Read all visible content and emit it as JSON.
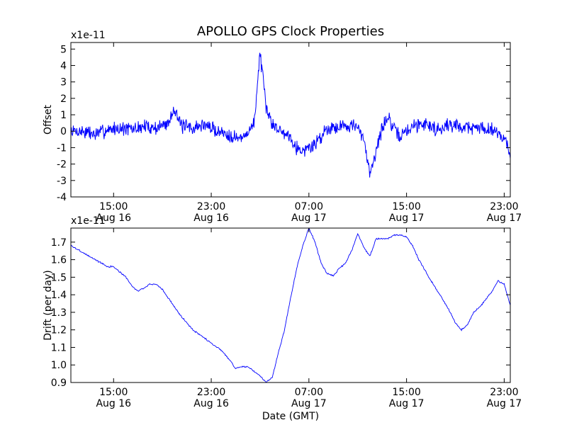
{
  "figure": {
    "title": "APOLLO GPS Clock Properties",
    "xlabel": "Date (GMT)"
  },
  "chart_data": [
    {
      "type": "line",
      "title": "APOLLO GPS Clock Properties",
      "ylabel": "Offset",
      "yscale_label": "x1e-11",
      "ylim": [
        -4,
        5.4
      ],
      "yticks": [
        -4,
        -3,
        -2,
        -1,
        0,
        1,
        2,
        3,
        4,
        5
      ],
      "x_range_hours": [
        11.5,
        47.5
      ],
      "xticks": [
        {
          "time": "15:00",
          "date": "Aug 16",
          "hour": 15
        },
        {
          "time": "23:00",
          "date": "Aug 16",
          "hour": 23
        },
        {
          "time": "07:00",
          "date": "Aug 17",
          "hour": 31
        },
        {
          "time": "15:00",
          "date": "Aug 17",
          "hour": 39
        },
        {
          "time": "23:00",
          "date": "Aug 17",
          "hour": 47
        }
      ],
      "color": "#0000ff",
      "series": [
        {
          "x": [
            11.5,
            12.5,
            13.5,
            14.5,
            15.5,
            16.5,
            17.5,
            18.5,
            19.5,
            20.0,
            20.5,
            21.5,
            22.5,
            23.5,
            24.5,
            25.5,
            26.0,
            26.5,
            27.0,
            27.5,
            28.0,
            28.5,
            29.5,
            30.0,
            30.5,
            31.5,
            32.5,
            33.5,
            34.5,
            35.0,
            35.5,
            36.0,
            36.5,
            37.0,
            37.5,
            38.0,
            38.5,
            39.5,
            40.5,
            41.5,
            42.5,
            43.5,
            44.5,
            45.5,
            46.5,
            47.0,
            47.5
          ],
          "y": [
            0.0,
            0.0,
            -0.2,
            0.1,
            0.2,
            0.1,
            0.3,
            0.2,
            0.5,
            1.5,
            0.3,
            0.2,
            0.4,
            0.0,
            -0.2,
            -0.5,
            0.0,
            0.4,
            4.8,
            1.3,
            0.5,
            0.1,
            -0.3,
            -1.0,
            -1.2,
            -0.8,
            0.2,
            0.3,
            0.4,
            0.2,
            -0.6,
            -2.5,
            -1.2,
            0.2,
            0.9,
            0.0,
            -0.3,
            0.3,
            0.5,
            0.1,
            0.4,
            0.3,
            0.2,
            0.2,
            0.0,
            -0.5,
            -1.3
          ]
        }
      ]
    },
    {
      "type": "line",
      "ylabel": "Drift (per day)",
      "yscale_label": "x1e-11",
      "ylim": [
        0.9,
        1.78
      ],
      "yticks": [
        0.9,
        1.0,
        1.1,
        1.2,
        1.3,
        1.4,
        1.5,
        1.6,
        1.7
      ],
      "x_range_hours": [
        11.5,
        47.5
      ],
      "xticks": [
        {
          "time": "15:00",
          "date": "Aug 16",
          "hour": 15
        },
        {
          "time": "23:00",
          "date": "Aug 16",
          "hour": 23
        },
        {
          "time": "07:00",
          "date": "Aug 17",
          "hour": 31
        },
        {
          "time": "15:00",
          "date": "Aug 17",
          "hour": 39
        },
        {
          "time": "23:00",
          "date": "Aug 17",
          "hour": 47
        }
      ],
      "color": "#0000ff",
      "series": [
        {
          "x": [
            11.5,
            12.5,
            13.5,
            14.5,
            15.0,
            16.0,
            16.5,
            17.0,
            18.0,
            18.5,
            19.0,
            20.5,
            21.5,
            22.5,
            23.5,
            24.0,
            24.5,
            25.0,
            25.5,
            26.0,
            27.0,
            27.5,
            28.0,
            28.5,
            29.0,
            29.5,
            30.0,
            30.5,
            31.0,
            31.5,
            32.0,
            32.5,
            33.0,
            33.5,
            34.0,
            34.5,
            35.0,
            35.5,
            36.0,
            36.5,
            37.5,
            38.0,
            38.5,
            39.0,
            39.5,
            40.0,
            41.0,
            42.0,
            42.5,
            43.0,
            43.5,
            44.0,
            44.5,
            45.0,
            46.0,
            46.5,
            47.0,
            47.5
          ],
          "y": [
            1.68,
            1.64,
            1.6,
            1.56,
            1.56,
            1.5,
            1.45,
            1.42,
            1.46,
            1.46,
            1.43,
            1.28,
            1.2,
            1.15,
            1.1,
            1.07,
            1.03,
            0.98,
            0.99,
            0.99,
            0.94,
            0.9,
            0.93,
            1.07,
            1.2,
            1.38,
            1.55,
            1.68,
            1.78,
            1.7,
            1.58,
            1.52,
            1.51,
            1.55,
            1.58,
            1.65,
            1.75,
            1.67,
            1.62,
            1.72,
            1.72,
            1.74,
            1.74,
            1.73,
            1.68,
            1.6,
            1.48,
            1.37,
            1.31,
            1.24,
            1.2,
            1.23,
            1.3,
            1.33,
            1.42,
            1.48,
            1.46,
            1.34
          ]
        }
      ]
    }
  ]
}
